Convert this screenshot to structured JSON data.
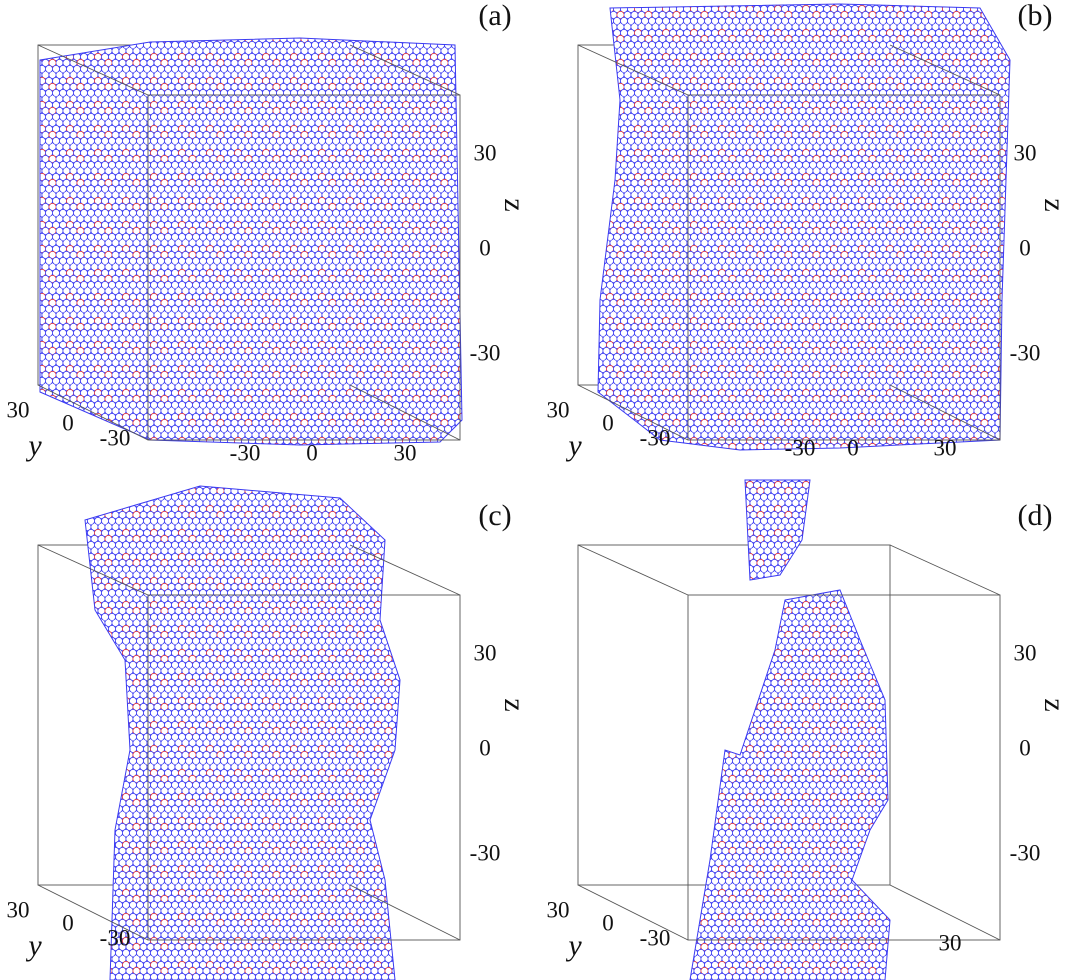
{
  "panels": [
    {
      "label": "(a)",
      "z_axis": {
        "label": "z",
        "ticks": [
          30,
          0,
          -30
        ]
      },
      "y_axis": {
        "label": "y",
        "ticks": [
          30,
          0,
          -30
        ]
      },
      "x_axis": {
        "ticks": [
          -30,
          0,
          30
        ]
      }
    },
    {
      "label": "(b)",
      "z_axis": {
        "label": "z",
        "ticks": [
          30,
          0,
          -30
        ]
      },
      "y_axis": {
        "label": "y",
        "ticks": [
          30,
          0,
          -30
        ]
      },
      "x_axis": {
        "ticks": [
          -30,
          0,
          30
        ]
      }
    },
    {
      "label": "(c)",
      "z_axis": {
        "label": "z",
        "ticks": [
          30,
          0,
          -30
        ]
      },
      "y_axis": {
        "label": "y",
        "ticks": [
          30,
          0,
          -30
        ]
      },
      "x_axis": {
        "ticks": []
      }
    },
    {
      "label": "(d)",
      "z_axis": {
        "label": "z",
        "ticks": [
          30,
          0,
          -30
        ]
      },
      "y_axis": {
        "label": "y",
        "ticks": [
          30,
          0,
          -30
        ]
      },
      "x_axis": {
        "ticks": [
          30
        ]
      }
    }
  ]
}
